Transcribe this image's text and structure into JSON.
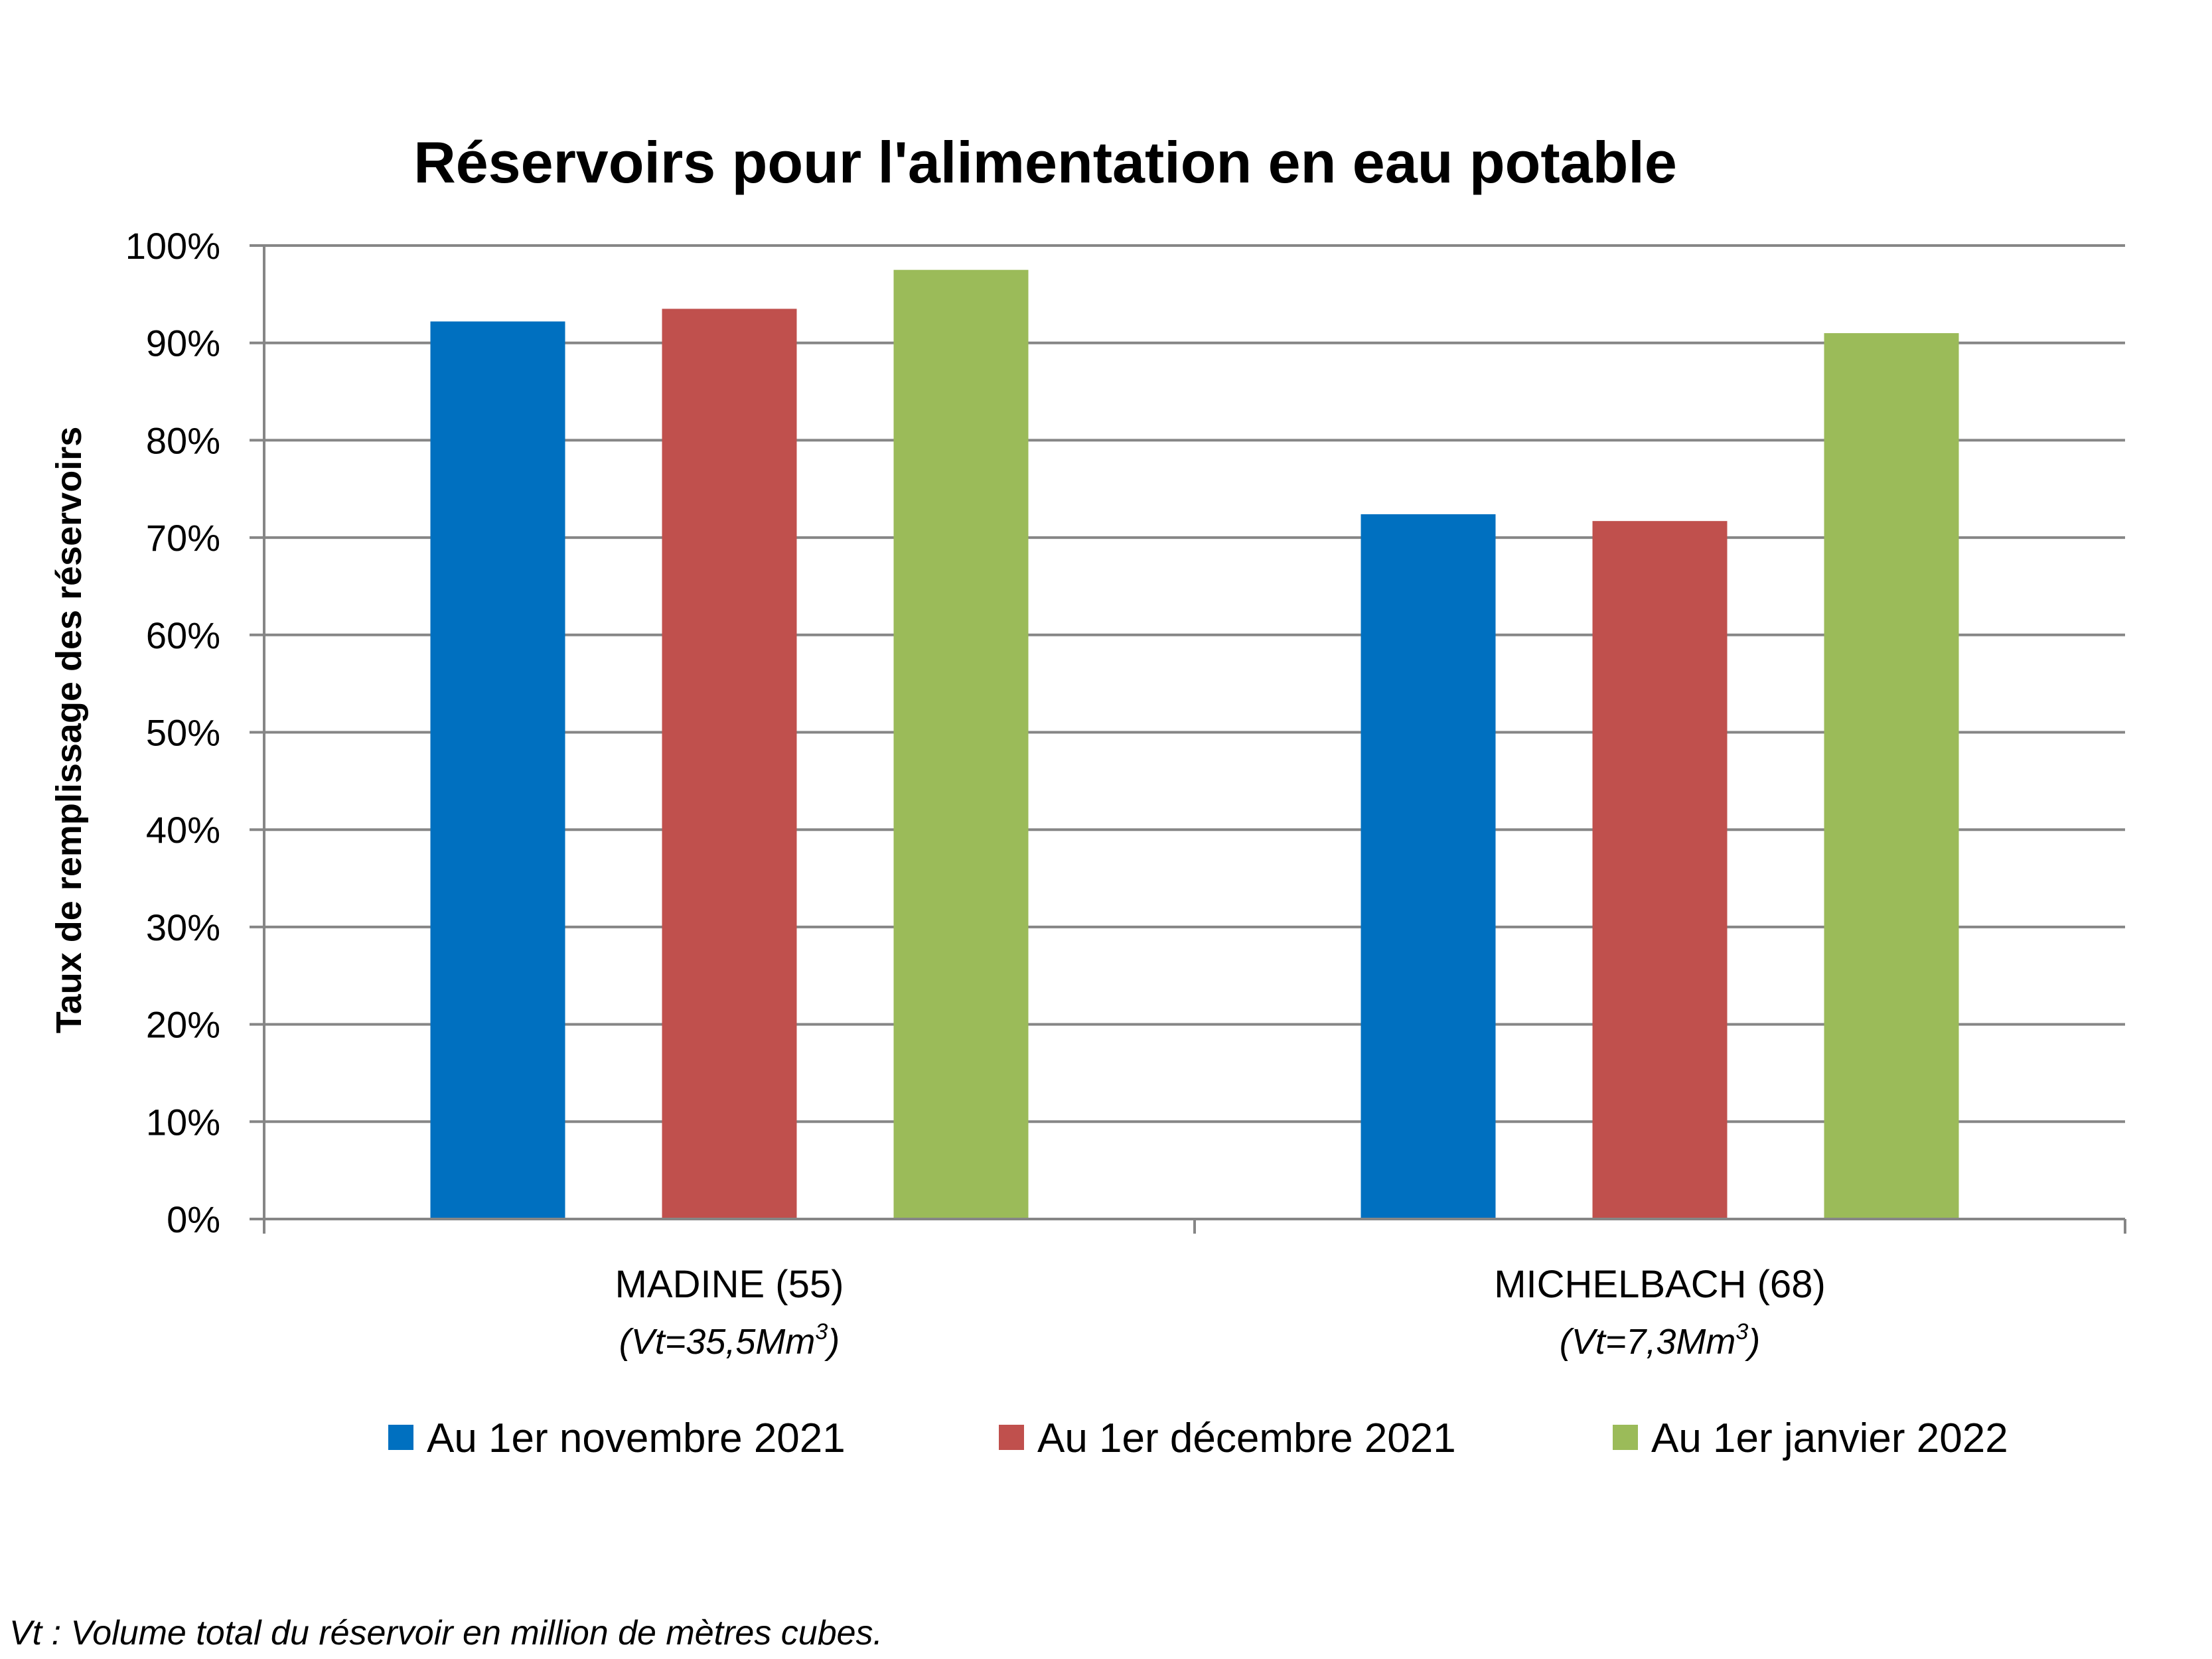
{
  "chart_data": {
    "type": "bar",
    "title": "Réservoirs pour l'alimentation en eau potable",
    "ylabel": "Taux de remplissage des réservoirs",
    "xlabel": "",
    "ylim": [
      0,
      100
    ],
    "yticks": [
      "0%",
      "10%",
      "20%",
      "30%",
      "40%",
      "50%",
      "60%",
      "70%",
      "80%",
      "90%",
      "100%"
    ],
    "grid": true,
    "legend_position": "bottom",
    "categories": [
      "MADINE (55)",
      "MICHELBACH (68)"
    ],
    "category_subtitles": [
      {
        "main": "(Vt=35,5Mm",
        "sup": "3",
        "end": ")"
      },
      {
        "main": "(Vt=7,3Mm",
        "sup": "3",
        "end": ")"
      }
    ],
    "series": [
      {
        "name": "Au 1er novembre 2021",
        "color": "#0070C0",
        "values": [
          92.2,
          72.4
        ]
      },
      {
        "name": "Au 1er décembre 2021",
        "color": "#C0504D",
        "values": [
          93.5,
          71.7
        ]
      },
      {
        "name": "Au 1er janvier 2022",
        "color": "#9BBB59",
        "values": [
          97.5,
          91.0
        ]
      }
    ]
  },
  "footnote": "Vt : Volume total du réservoir en million de mètres cubes."
}
